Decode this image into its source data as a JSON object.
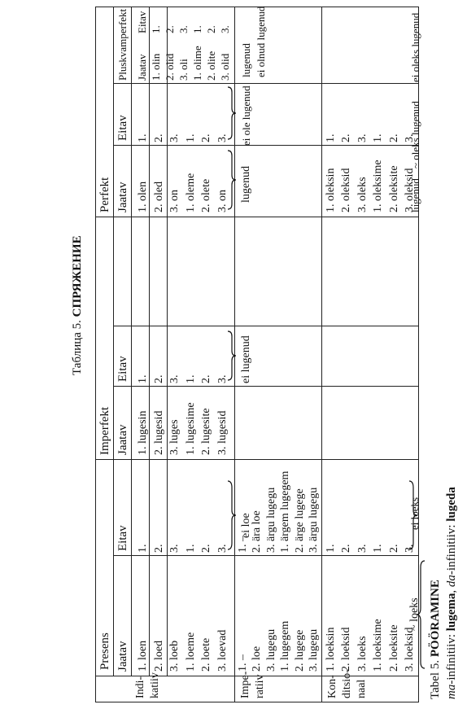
{
  "caption": {
    "table_label": "Tabel 5.",
    "title": "PÖÖRAMINE",
    "subtitle_ma_label": "ma",
    "subtitle_ma_text": "-infinitiiv: ",
    "subtitle_ma_verb": "lugema",
    "subtitle_da_label": "da",
    "subtitle_da_text": "-infinitiiv: ",
    "subtitle_da_verb": "lugeda",
    "ru_label": "Таблица 5.",
    "ru_title": "СПРЯЖЕНИЕ"
  },
  "tenses": {
    "presens": "Presens",
    "imperfekt": "Imperfekt",
    "perfekt": "Perfekt",
    "pluskvamperfekt": "Pluskvamperfekt"
  },
  "polarity": {
    "jaatav": "Jaatav",
    "eitav": "Eitav"
  },
  "moods": {
    "indikatiiv": [
      "Indi-",
      "katiiv"
    ],
    "imperatiiv": [
      "Impe-",
      "ratiiv"
    ],
    "konditsionaal": [
      "Kon-",
      "ditsio-",
      "naal"
    ]
  },
  "indikatiiv": {
    "presens_jaatav": [
      "1. loen",
      "2. loed",
      "3. loeb",
      "1. loeme",
      "2. loete",
      "3. loevad"
    ],
    "presens_eitav": [
      "1.",
      "2.",
      "3.",
      "1.",
      "2.",
      "3."
    ],
    "presens_eitav_shared": "ei loe",
    "imperfekt_jaatav": [
      "1. lugesin",
      "2. lugesid",
      "3. luges",
      "1. lugesime",
      "2. lugesite",
      "3. lugesid"
    ],
    "imperfekt_eitav": [
      "1.",
      "2.",
      "3.",
      "1.",
      "2.",
      "3."
    ],
    "imperfekt_eitav_shared": "ei lugenud",
    "perfekt_jaatav": [
      "1. olen",
      "2. oled",
      "3. on",
      "1. oleme",
      "2. olete",
      "3. on"
    ],
    "perfekt_jaatav_shared": "lugenud",
    "perfekt_eitav": [
      "1.",
      "2.",
      "3.",
      "1.",
      "2.",
      "3."
    ],
    "perfekt_eitav_shared": "ei ole lugenud",
    "pluskv_jaatav": [
      "1. olin",
      "2. olid",
      "3. oli",
      "1. olime",
      "2. olite",
      "3. olid"
    ],
    "pluskv_jaatav_shared": "lugenud",
    "pluskv_eitav": [
      "1.",
      "2.",
      "3.",
      "1.",
      "2.",
      "3."
    ],
    "pluskv_eitav_shared": "ei olnud lugenud"
  },
  "imperatiiv": {
    "presens_jaatav": [
      "1. –",
      "2. loe",
      "3. lugegu",
      "1. lugegem",
      "2. lugege",
      "3. lugegu"
    ],
    "presens_eitav": [
      "1. –",
      "2. ära loe",
      "3. ärgu lugegu",
      "1. ärgem lugegem",
      "2. ärge lugege",
      "3. ärgu lugegu"
    ]
  },
  "konditsionaal": {
    "presens_jaatav": [
      "1. loeksin",
      "2. loeksid",
      "3. loeks",
      "1. loeksime",
      "2. loeksite",
      "3. loeksid"
    ],
    "presens_jaatav_shared": "~ loeks",
    "presens_eitav": [
      "1.",
      "2.",
      "3.",
      "1.",
      "2.",
      "3."
    ],
    "presens_eitav_shared": "ei loeks",
    "perfekt_jaatav": [
      "1. oleksin",
      "2. oleksid",
      "3. oleks",
      "1. oleksime",
      "2. oleksite",
      "3. oleksid"
    ],
    "perfekt_jaatav_shared": "lugenud",
    "perfekt_jaatav_shared_alt": "~ oleks lugenud",
    "perfekt_eitav": [
      "1.",
      "2.",
      "3.",
      "1.",
      "2.",
      "3."
    ],
    "perfekt_eitav_shared": "ei oleks lugenud"
  }
}
